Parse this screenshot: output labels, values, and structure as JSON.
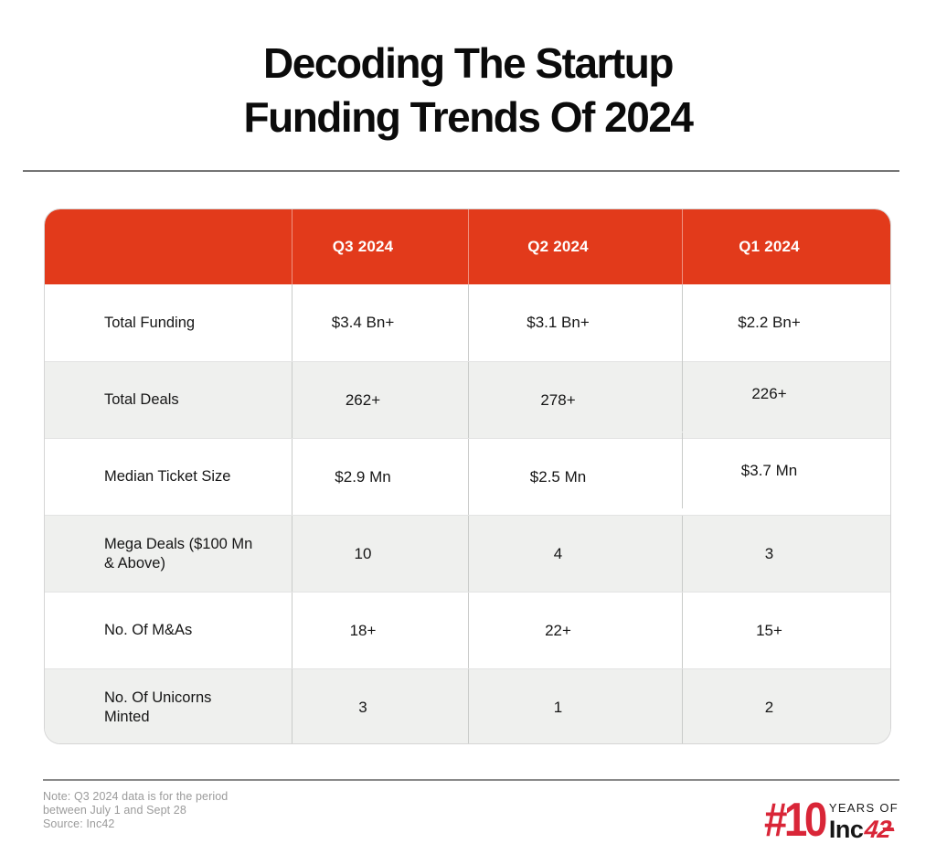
{
  "title": {
    "line1": "Decoding The Startup",
    "line2": "Funding Trends Of 2024"
  },
  "table": {
    "header": [
      "Q3 2024",
      "Q2 2024",
      "Q1 2024"
    ],
    "rows": [
      {
        "label": "Total Funding",
        "q3": "$3.4 Bn+",
        "q2": "$3.1 Bn+",
        "q1": "$2.2 Bn+"
      },
      {
        "label": "Total Deals",
        "q3": "262+",
        "q2": "278+",
        "q1": "226+"
      },
      {
        "label": "Median Ticket Size",
        "q3": "$2.9 Mn",
        "q2": "$2.5 Mn",
        "q1": "$3.7 Mn"
      },
      {
        "label": "Mega Deals ($100 Mn & Above)",
        "q3": "10",
        "q2": "4",
        "q1": "3"
      },
      {
        "label": "No. Of M&As",
        "q3": "18+",
        "q2": "22+",
        "q1": "15+"
      },
      {
        "label": "No. Of Unicorns Minted",
        "q3": "3",
        "q2": "1",
        "q1": "2"
      }
    ]
  },
  "footer": {
    "note_line1": "Note: Q3 2024 data is for the period",
    "note_line2": "between July 1 and Sept 28",
    "source": "Source: Inc42",
    "logo": {
      "hash10": "#10",
      "years_of": "YEARS OF",
      "inc": "Inc",
      "fortytwo": "42"
    }
  },
  "colors": {
    "header_red": "#e23a1b",
    "logo_red": "#d92638",
    "row_gray": "#eff0ee",
    "note_gray": "#9b9b9b",
    "title_black": "#0b0b0b"
  },
  "chart_data": {
    "type": "table",
    "title": "Decoding The Startup Funding Trends Of 2024",
    "columns": [
      "",
      "Q3 2024",
      "Q2 2024",
      "Q1 2024"
    ],
    "rows": [
      [
        "Total Funding",
        "$3.4 Bn+",
        "$3.1 Bn+",
        "$2.2 Bn+"
      ],
      [
        "Total Deals",
        "262+",
        "278+",
        "226+"
      ],
      [
        "Median Ticket Size",
        "$2.9 Mn",
        "$2.5 Mn",
        "$3.7 Mn"
      ],
      [
        "Mega Deals ($100 Mn & Above)",
        "10",
        "4",
        "3"
      ],
      [
        "No. Of M&As",
        "18+",
        "22+",
        "15+"
      ],
      [
        "No. Of Unicorns Minted",
        "3",
        "1",
        "2"
      ]
    ],
    "numeric_series": [
      {
        "name": "Total Funding ($ Bn)",
        "categories": [
          "Q3 2024",
          "Q2 2024",
          "Q1 2024"
        ],
        "values": [
          3.4,
          3.1,
          2.2
        ]
      },
      {
        "name": "Total Deals",
        "categories": [
          "Q3 2024",
          "Q2 2024",
          "Q1 2024"
        ],
        "values": [
          262,
          278,
          226
        ]
      },
      {
        "name": "Median Ticket Size ($ Mn)",
        "categories": [
          "Q3 2024",
          "Q2 2024",
          "Q1 2024"
        ],
        "values": [
          2.9,
          2.5,
          3.7
        ]
      },
      {
        "name": "Mega Deals ($100 Mn & Above)",
        "categories": [
          "Q3 2024",
          "Q2 2024",
          "Q1 2024"
        ],
        "values": [
          10,
          4,
          3
        ]
      },
      {
        "name": "No. Of M&As",
        "categories": [
          "Q3 2024",
          "Q2 2024",
          "Q1 2024"
        ],
        "values": [
          18,
          22,
          15
        ]
      },
      {
        "name": "No. Of Unicorns Minted",
        "categories": [
          "Q3 2024",
          "Q2 2024",
          "Q1 2024"
        ],
        "values": [
          3,
          1,
          2
        ]
      }
    ],
    "note": "Note: Q3 2024 data is for the period between July 1 and Sept 28",
    "source": "Source: Inc42"
  }
}
